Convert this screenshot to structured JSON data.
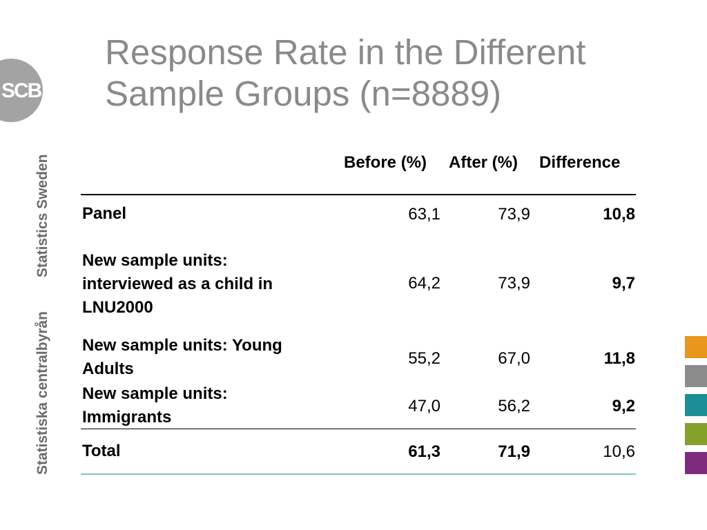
{
  "title": {
    "line1": "Response Rate in the Different",
    "line2": "Sample Groups (n=8889)"
  },
  "branding": {
    "logo_text": "SCB",
    "vertical_text_1": "Statistics Sweden",
    "vertical_text_2": "Statistiska centralbyrån"
  },
  "table": {
    "headers": [
      "Before (%)",
      "After (%)",
      "Difference"
    ],
    "rows": [
      {
        "label_lines": [
          "Panel"
        ],
        "before": "63,1",
        "after": "73,9",
        "difference": "10,8"
      },
      {
        "label_lines": [
          "New sample units:",
          "interviewed as a child in",
          "LNU2000"
        ],
        "before": "64,2",
        "after": "73,9",
        "difference": "9,7"
      },
      {
        "label_lines": [
          "New sample units: Young",
          "Adults"
        ],
        "before": "55,2",
        "after": "67,0",
        "difference": "11,8"
      },
      {
        "label_lines": [
          "New sample units:",
          "Immigrants"
        ],
        "before": "47,0",
        "after": "56,2",
        "difference": "9,2"
      }
    ],
    "total": {
      "label": "Total",
      "before": "61,3",
      "after": "71,9",
      "difference": "10,6"
    }
  },
  "colors": {
    "title_gray": "#8a8a8a",
    "squares": [
      "#e8961c",
      "#8c8c8c",
      "#1a8f96",
      "#85a02b",
      "#7e2a7f"
    ]
  }
}
